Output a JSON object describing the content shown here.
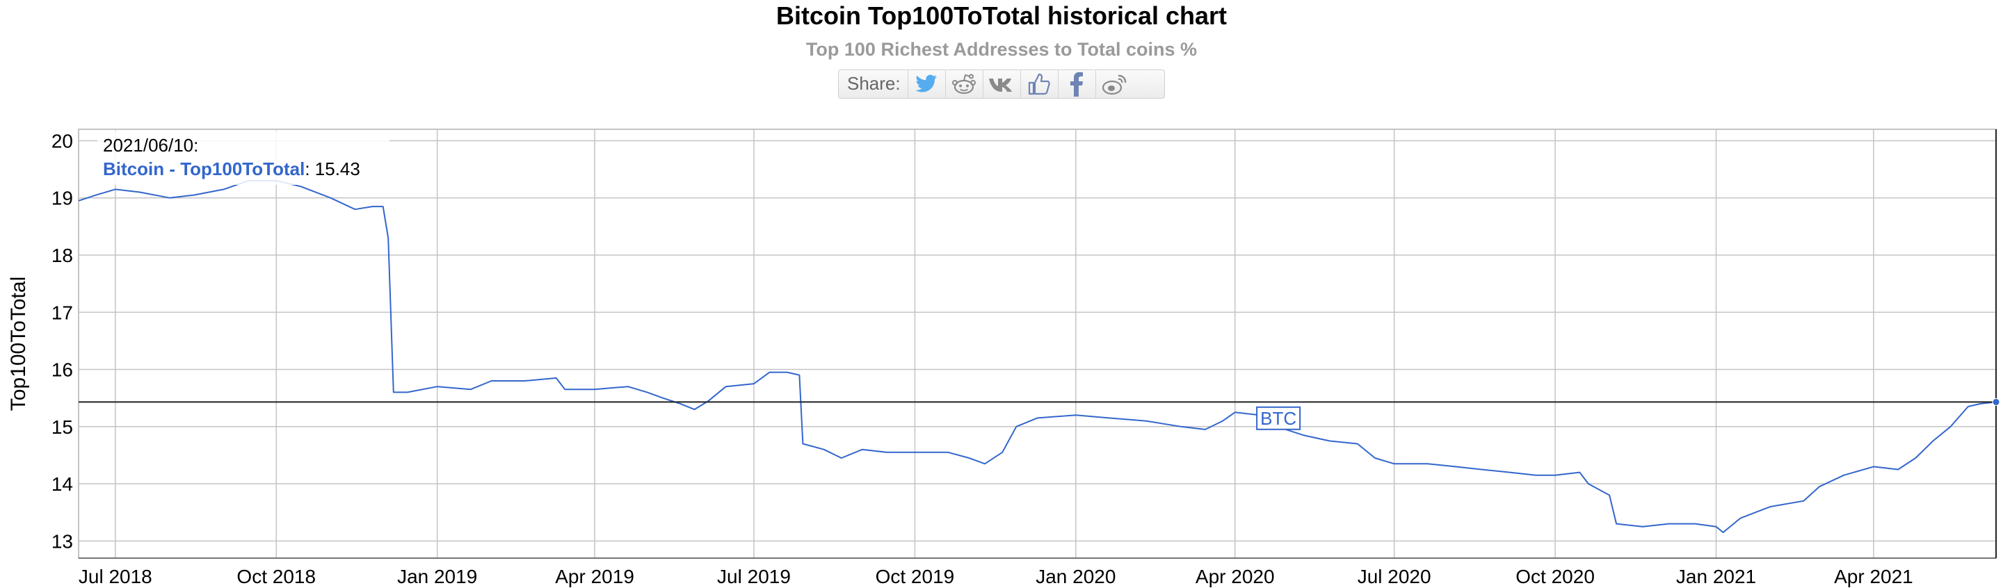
{
  "header": {
    "title": "Bitcoin Top100ToTotal historical chart",
    "subtitle": "Top 100 Richest Addresses to Total coins %"
  },
  "share": {
    "label": "Share:",
    "buttons": [
      {
        "name": "twitter-icon",
        "color": "#55acee"
      },
      {
        "name": "reddit-icon",
        "color": "#8a8a8a"
      },
      {
        "name": "vk-icon",
        "color": "#8a8a8a"
      },
      {
        "name": "like-icon",
        "color": "#6d84b4"
      },
      {
        "name": "facebook-icon",
        "color": "#6d84b4"
      },
      {
        "name": "weibo-icon",
        "color": "#8a8a8a"
      }
    ]
  },
  "tooltip": {
    "date": "2021/06/10:",
    "series": "Bitcoin - Top100ToTotal",
    "value": ": 15.43"
  },
  "chart_data": {
    "type": "line",
    "title": "Bitcoin Top100ToTotal historical chart",
    "subtitle": "Top 100 Richest Addresses to Total coins %",
    "ylabel": "Top100ToTotal",
    "xlabel": "",
    "ylim": [
      12.7,
      20.2
    ],
    "xlim": [
      "2018-06-10",
      "2021-06-10"
    ],
    "grid": true,
    "y_ticks": [
      13,
      14,
      15,
      16,
      17,
      18,
      19,
      20
    ],
    "x_ticks": [
      {
        "date": "2018-07-01",
        "label": "Jul 2018"
      },
      {
        "date": "2018-10-01",
        "label": "Oct 2018"
      },
      {
        "date": "2019-01-01",
        "label": "Jan 2019"
      },
      {
        "date": "2019-04-01",
        "label": "Apr 2019"
      },
      {
        "date": "2019-07-01",
        "label": "Jul 2019"
      },
      {
        "date": "2019-10-01",
        "label": "Oct 2019"
      },
      {
        "date": "2020-01-01",
        "label": "Jan 2020"
      },
      {
        "date": "2020-04-01",
        "label": "Apr 2020"
      },
      {
        "date": "2020-07-01",
        "label": "Jul 2020"
      },
      {
        "date": "2020-10-01",
        "label": "Oct 2020"
      },
      {
        "date": "2021-01-01",
        "label": "Jan 2021"
      },
      {
        "date": "2021-04-01",
        "label": "Apr 2021"
      }
    ],
    "series": [
      {
        "name": "Bitcoin - Top100ToTotal",
        "color": "#3366cc",
        "points": [
          [
            "2018-06-10",
            18.95
          ],
          [
            "2018-06-20",
            19.05
          ],
          [
            "2018-07-01",
            19.15
          ],
          [
            "2018-07-15",
            19.1
          ],
          [
            "2018-08-01",
            19.0
          ],
          [
            "2018-08-15",
            19.05
          ],
          [
            "2018-09-01",
            19.15
          ],
          [
            "2018-09-15",
            19.3
          ],
          [
            "2018-10-01",
            19.3
          ],
          [
            "2018-10-15",
            19.2
          ],
          [
            "2018-11-01",
            19.0
          ],
          [
            "2018-11-15",
            18.8
          ],
          [
            "2018-11-25",
            18.85
          ],
          [
            "2018-12-01",
            18.85
          ],
          [
            "2018-12-04",
            18.3
          ],
          [
            "2018-12-07",
            15.6
          ],
          [
            "2018-12-15",
            15.6
          ],
          [
            "2019-01-01",
            15.7
          ],
          [
            "2019-01-20",
            15.65
          ],
          [
            "2019-02-01",
            15.8
          ],
          [
            "2019-02-20",
            15.8
          ],
          [
            "2019-03-10",
            15.85
          ],
          [
            "2019-03-15",
            15.65
          ],
          [
            "2019-04-01",
            15.65
          ],
          [
            "2019-04-20",
            15.7
          ],
          [
            "2019-05-01",
            15.6
          ],
          [
            "2019-05-10",
            15.5
          ],
          [
            "2019-05-20",
            15.4
          ],
          [
            "2019-05-28",
            15.3
          ],
          [
            "2019-06-05",
            15.45
          ],
          [
            "2019-06-15",
            15.7
          ],
          [
            "2019-07-01",
            15.75
          ],
          [
            "2019-07-10",
            15.95
          ],
          [
            "2019-07-20",
            15.95
          ],
          [
            "2019-07-27",
            15.9
          ],
          [
            "2019-07-29",
            14.7
          ],
          [
            "2019-08-10",
            14.6
          ],
          [
            "2019-08-20",
            14.45
          ],
          [
            "2019-09-01",
            14.6
          ],
          [
            "2019-09-15",
            14.55
          ],
          [
            "2019-10-01",
            14.55
          ],
          [
            "2019-10-20",
            14.55
          ],
          [
            "2019-11-01",
            14.45
          ],
          [
            "2019-11-10",
            14.35
          ],
          [
            "2019-11-20",
            14.55
          ],
          [
            "2019-11-28",
            15.0
          ],
          [
            "2019-12-10",
            15.15
          ],
          [
            "2020-01-01",
            15.2
          ],
          [
            "2020-01-20",
            15.15
          ],
          [
            "2020-02-10",
            15.1
          ],
          [
            "2020-03-01",
            15.0
          ],
          [
            "2020-03-15",
            14.95
          ],
          [
            "2020-03-25",
            15.1
          ],
          [
            "2020-04-01",
            15.25
          ],
          [
            "2020-04-15",
            15.2
          ],
          [
            "2020-04-25",
            15.0
          ],
          [
            "2020-05-10",
            14.85
          ],
          [
            "2020-05-25",
            14.75
          ],
          [
            "2020-06-10",
            14.7
          ],
          [
            "2020-06-20",
            14.45
          ],
          [
            "2020-07-01",
            14.35
          ],
          [
            "2020-07-20",
            14.35
          ],
          [
            "2020-08-05",
            14.3
          ],
          [
            "2020-08-20",
            14.25
          ],
          [
            "2020-09-05",
            14.2
          ],
          [
            "2020-09-20",
            14.15
          ],
          [
            "2020-10-01",
            14.15
          ],
          [
            "2020-10-15",
            14.2
          ],
          [
            "2020-10-20",
            14.0
          ],
          [
            "2020-11-01",
            13.8
          ],
          [
            "2020-11-05",
            13.3
          ],
          [
            "2020-11-20",
            13.25
          ],
          [
            "2020-12-05",
            13.3
          ],
          [
            "2020-12-20",
            13.3
          ],
          [
            "2021-01-01",
            13.25
          ],
          [
            "2021-01-05",
            13.15
          ],
          [
            "2021-01-15",
            13.4
          ],
          [
            "2021-02-01",
            13.6
          ],
          [
            "2021-02-20",
            13.7
          ],
          [
            "2021-03-01",
            13.95
          ],
          [
            "2021-03-15",
            14.15
          ],
          [
            "2021-04-01",
            14.3
          ],
          [
            "2021-04-15",
            14.25
          ],
          [
            "2021-04-25",
            14.45
          ],
          [
            "2021-05-05",
            14.75
          ],
          [
            "2021-05-15",
            15.0
          ],
          [
            "2021-05-25",
            15.35
          ],
          [
            "2021-06-01",
            15.4
          ],
          [
            "2021-06-10",
            15.43
          ]
        ]
      }
    ],
    "crosshair": {
      "date": "2021-06-10",
      "value": 15.43
    },
    "annotation": {
      "label": "BTC",
      "date": "2020-04-25",
      "value": 15.0
    }
  }
}
